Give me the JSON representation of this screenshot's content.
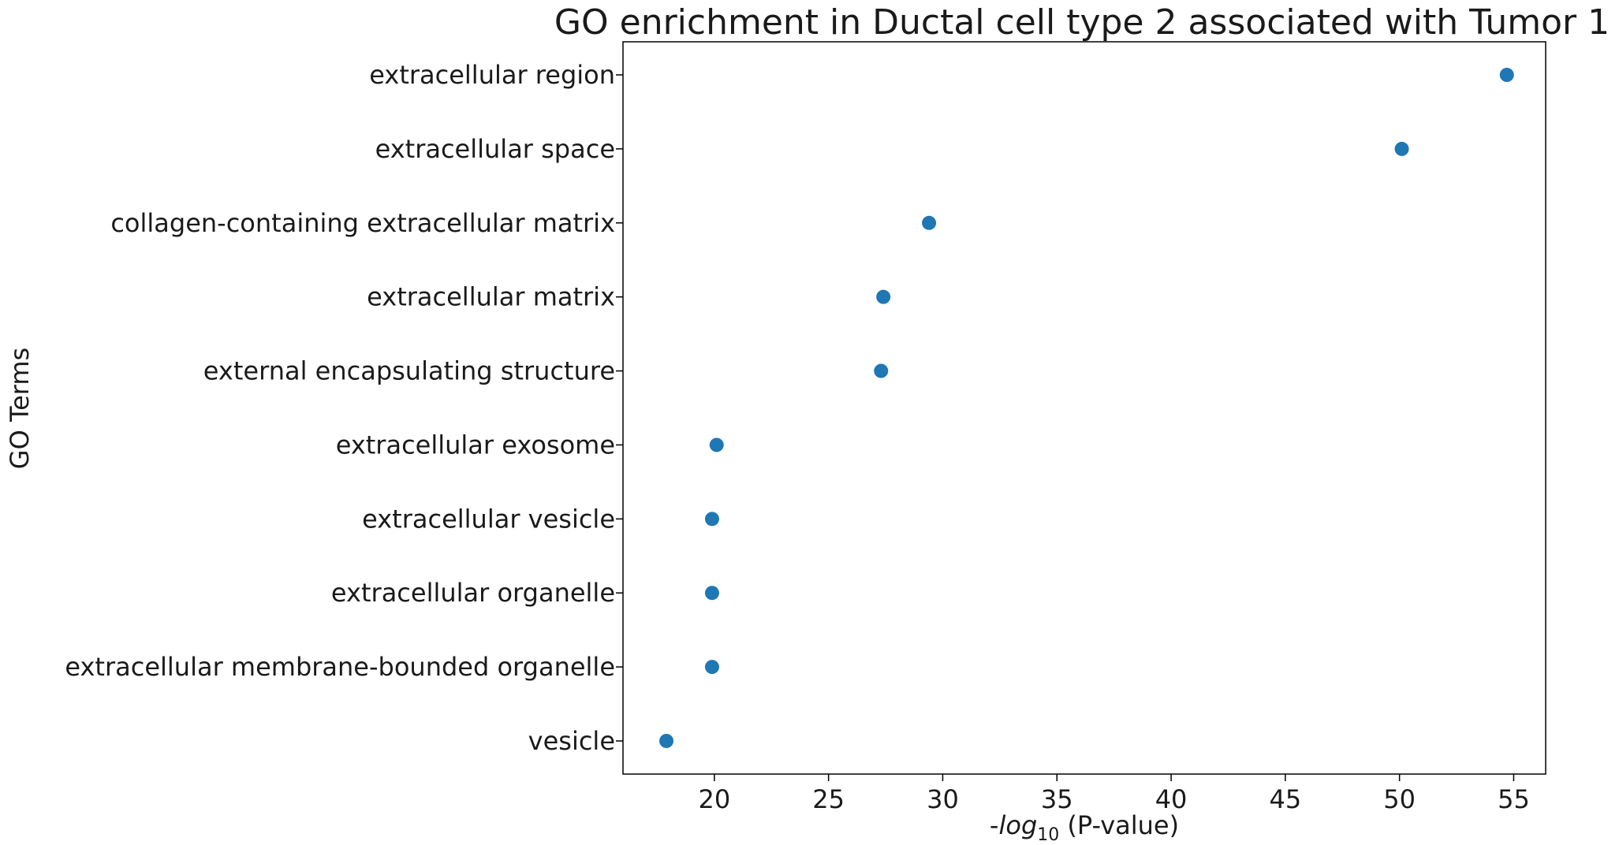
{
  "chart_data": {
    "type": "scatter",
    "title": "GO enrichment in Ductal cell type 2 associated with Tumor 1",
    "xlabel": {
      "prefix": "-",
      "log": "log",
      "base": "10",
      "suffix": " (P-value)"
    },
    "ylabel": "GO Terms",
    "xlim": [
      16,
      56.4
    ],
    "xticks": [
      20,
      25,
      30,
      35,
      40,
      45,
      50,
      55
    ],
    "grid": false,
    "marker_color": "#1f77b4",
    "points": [
      {
        "term": "extracellular region",
        "value": 54.7
      },
      {
        "term": "extracellular space",
        "value": 50.1
      },
      {
        "term": "collagen-containing extracellular matrix",
        "value": 29.4
      },
      {
        "term": "extracellular matrix",
        "value": 27.4
      },
      {
        "term": "external encapsulating structure",
        "value": 27.3
      },
      {
        "term": "extracellular exosome",
        "value": 20.1
      },
      {
        "term": "extracellular vesicle",
        "value": 19.9
      },
      {
        "term": "extracellular organelle",
        "value": 19.9
      },
      {
        "term": "extracellular membrane-bounded organelle",
        "value": 19.9
      },
      {
        "term": "vesicle",
        "value": 17.9
      }
    ]
  }
}
